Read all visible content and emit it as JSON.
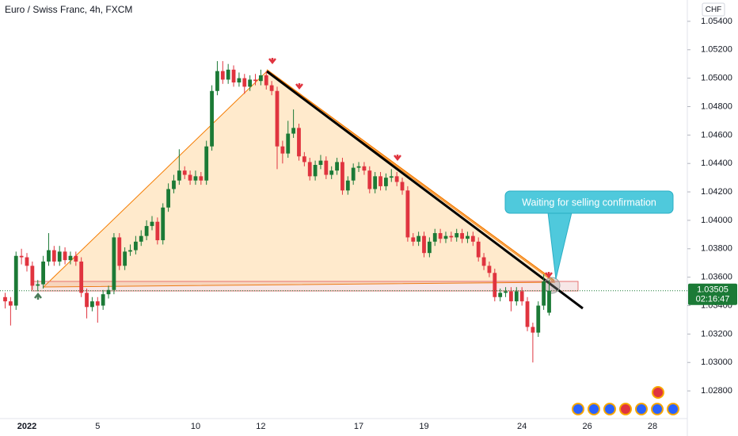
{
  "chart_data": {
    "type": "candlestick",
    "title": "Euro / Swiss Franc, 4h, FXCM",
    "currency": "CHF",
    "annotation": "Waiting for selling confirmation",
    "current_price": 1.03505,
    "countdown": "02:16:47",
    "up_color": "#1b7a36",
    "down_color": "#e0343f",
    "ylim": [
      1.0265,
      1.0555
    ],
    "yticks": [
      {
        "value": 1.028,
        "label": "1.02800"
      },
      {
        "value": 1.03,
        "label": "1.03000"
      },
      {
        "value": 1.032,
        "label": "1.03200"
      },
      {
        "value": 1.034,
        "label": "1.03400"
      },
      {
        "value": 1.036,
        "label": "1.03600"
      },
      {
        "value": 1.038,
        "label": "1.03800"
      },
      {
        "value": 1.04,
        "label": "1.04000"
      },
      {
        "value": 1.042,
        "label": "1.04200"
      },
      {
        "value": 1.044,
        "label": "1.04400"
      },
      {
        "value": 1.046,
        "label": "1.04600"
      },
      {
        "value": 1.048,
        "label": "1.04800"
      },
      {
        "value": 1.05,
        "label": "1.05000"
      },
      {
        "value": 1.052,
        "label": "1.05200"
      },
      {
        "value": 1.054,
        "label": "1.05400"
      }
    ],
    "categories": [
      null,
      null,
      null,
      null,
      "2022",
      null,
      null,
      null,
      null,
      null,
      null,
      null,
      null,
      null,
      null,
      null,
      null,
      "5",
      null,
      null,
      null,
      null,
      null,
      null,
      null,
      null,
      null,
      null,
      null,
      null,
      null,
      null,
      null,
      null,
      null,
      "10",
      null,
      null,
      null,
      null,
      null,
      null,
      null,
      null,
      null,
      null,
      null,
      "12",
      null,
      null,
      null,
      null,
      null,
      null,
      null,
      null,
      null,
      null,
      null,
      null,
      null,
      null,
      null,
      null,
      null,
      "17",
      null,
      null,
      null,
      null,
      null,
      null,
      null,
      null,
      null,
      null,
      null,
      "19",
      null,
      null,
      null,
      null,
      null,
      null,
      null,
      null,
      null,
      null,
      null,
      null,
      null,
      null,
      null,
      null,
      null,
      "24",
      null,
      null,
      null,
      null,
      null,
      null,
      null,
      null,
      null,
      null,
      null,
      "26",
      null,
      null,
      null,
      null,
      null,
      null,
      null,
      null,
      null,
      null,
      null,
      "28",
      null
    ],
    "open": [
      1.0346,
      1.0343,
      1.034,
      1.0375,
      1.0374,
      1.0368,
      1.0354,
      1.0355,
      1.0371,
      1.0379,
      1.0371,
      1.0378,
      1.0372,
      1.0375,
      1.0371,
      1.0349,
      1.0339,
      1.0343,
      1.034,
      1.0348,
      1.0351,
      1.0388,
      1.0368,
      1.0378,
      1.0379,
      1.0385,
      1.0389,
      1.0396,
      1.0399,
      1.0386,
      1.0409,
      1.0422,
      1.0428,
      1.0435,
      1.0432,
      1.0428,
      1.0431,
      1.0428,
      1.0452,
      1.0491,
      1.0505,
      1.0499,
      1.0506,
      1.0497,
      1.05,
      1.0494,
      1.0499,
      1.0498,
      1.0502,
      1.0495,
      1.0491,
      1.0452,
      1.0447,
      1.0461,
      1.0465,
      1.0445,
      1.0441,
      1.0431,
      1.0439,
      1.0442,
      1.0432,
      1.0435,
      1.0441,
      1.0421,
      1.0428,
      1.0437,
      1.0438,
      1.0435,
      1.0422,
      1.0431,
      1.0424,
      1.043,
      1.0431,
      1.0427,
      1.0421,
      1.0388,
      1.0385,
      1.0389,
      1.0377,
      1.0385,
      1.0391,
      1.0387,
      1.0389,
      1.0388,
      1.0391,
      1.0387,
      1.0389,
      1.0385,
      1.0374,
      1.0368,
      1.0363,
      1.0346,
      1.0349,
      1.035,
      1.0343,
      1.035,
      1.0343,
      1.0325,
      1.0321,
      1.034,
      1.0335,
      null,
      null,
      null,
      null,
      null,
      null,
      null,
      null,
      null,
      null,
      null,
      null,
      null,
      null,
      null,
      null,
      null,
      null,
      null,
      null
    ],
    "high": [
      1.0349,
      1.0346,
      1.0378,
      1.038,
      1.0377,
      1.0371,
      1.0358,
      1.0375,
      1.0391,
      1.0382,
      1.0382,
      1.0381,
      1.0378,
      1.0378,
      1.0374,
      1.0352,
      1.0346,
      1.0346,
      1.0351,
      1.0354,
      1.0391,
      1.0391,
      1.0381,
      1.0383,
      1.0389,
      1.0393,
      1.04,
      1.0403,
      1.0402,
      1.0412,
      1.0426,
      1.0432,
      1.045,
      1.0438,
      1.0435,
      1.0435,
      1.0434,
      1.0456,
      1.0495,
      1.0512,
      1.0512,
      1.051,
      1.0509,
      1.0504,
      1.0503,
      1.0502,
      1.0503,
      1.0506,
      1.0505,
      1.0498,
      1.0494,
      1.0456,
      1.047,
      1.0478,
      1.0468,
      1.0448,
      1.0444,
      1.0442,
      1.0446,
      1.0445,
      1.0438,
      1.0444,
      1.0444,
      1.0431,
      1.044,
      1.0441,
      1.0441,
      1.0438,
      1.0434,
      1.0434,
      1.0433,
      1.0436,
      1.0434,
      1.043,
      1.0424,
      1.0391,
      1.0392,
      1.0392,
      1.0388,
      1.0394,
      1.0394,
      1.0392,
      1.0392,
      1.0394,
      1.0394,
      1.0392,
      1.0392,
      1.0388,
      1.0377,
      1.0371,
      1.0366,
      1.0352,
      1.0353,
      1.0353,
      1.0353,
      1.0353,
      1.0346,
      1.0328,
      1.0343,
      1.0362,
      1.0358,
      null,
      null,
      null,
      null,
      null,
      null,
      null,
      null,
      null,
      null,
      null,
      null,
      null,
      null,
      null,
      null,
      null,
      null,
      null,
      null
    ],
    "low": [
      1.0338,
      1.0326,
      1.0337,
      1.0369,
      1.0364,
      1.0351,
      1.035,
      1.0352,
      1.0368,
      1.0368,
      1.0368,
      1.0369,
      1.0369,
      1.0368,
      1.0346,
      1.0331,
      1.0336,
      1.0328,
      1.0337,
      1.0345,
      1.0348,
      1.0365,
      1.0365,
      1.0375,
      1.0376,
      1.0382,
      1.0386,
      1.0393,
      1.0383,
      1.0383,
      1.0406,
      1.0419,
      1.0425,
      1.0429,
      1.0425,
      1.0425,
      1.0425,
      1.0425,
      1.0449,
      1.0488,
      1.0496,
      1.0496,
      1.0494,
      1.0494,
      1.0489,
      1.0491,
      1.0495,
      1.0495,
      1.0492,
      1.0488,
      1.0436,
      1.044,
      1.0444,
      1.0458,
      1.0442,
      1.0438,
      1.0428,
      1.0428,
      1.0436,
      1.0429,
      1.0429,
      1.0432,
      1.0418,
      1.0418,
      1.0425,
      1.0434,
      1.0432,
      1.0419,
      1.0419,
      1.0421,
      1.0421,
      1.0427,
      1.0424,
      1.0418,
      1.0385,
      1.0382,
      1.0382,
      1.0374,
      1.0374,
      1.0382,
      1.0384,
      1.0384,
      1.0385,
      1.0385,
      1.0384,
      1.0384,
      1.0382,
      1.0371,
      1.0365,
      1.036,
      1.0343,
      1.0343,
      1.0346,
      1.0336,
      1.034,
      1.034,
      1.0322,
      1.03,
      1.0318,
      1.0337,
      1.0333,
      null,
      null,
      null,
      null,
      null,
      null,
      null,
      null,
      null,
      null,
      null,
      null,
      null,
      null,
      null,
      null,
      null,
      null,
      null,
      null
    ],
    "close": [
      1.0343,
      1.034,
      1.0375,
      1.0374,
      1.0368,
      1.0354,
      1.0355,
      1.0371,
      1.0379,
      1.0371,
      1.0378,
      1.0372,
      1.0375,
      1.0371,
      1.0349,
      1.0339,
      1.0343,
      1.034,
      1.0348,
      1.0351,
      1.0388,
      1.0368,
      1.0378,
      1.0379,
      1.0385,
      1.0389,
      1.0396,
      1.0399,
      1.0386,
      1.0409,
      1.0422,
      1.0428,
      1.0435,
      1.0432,
      1.0428,
      1.0431,
      1.0428,
      1.0452,
      1.0491,
      1.0505,
      1.0499,
      1.0506,
      1.0497,
      1.05,
      1.0494,
      1.0499,
      1.0498,
      1.0502,
      1.0495,
      1.0491,
      1.0452,
      1.0447,
      1.0461,
      1.0465,
      1.0445,
      1.0441,
      1.0431,
      1.0439,
      1.0442,
      1.0432,
      1.0435,
      1.0441,
      1.0421,
      1.0428,
      1.0437,
      1.0438,
      1.0435,
      1.0422,
      1.0431,
      1.0424,
      1.043,
      1.0431,
      1.0427,
      1.0421,
      1.0388,
      1.0385,
      1.0389,
      1.0377,
      1.0385,
      1.0391,
      1.0387,
      1.0389,
      1.0388,
      1.0391,
      1.0387,
      1.0389,
      1.0385,
      1.0374,
      1.0368,
      1.0363,
      1.0346,
      1.0349,
      1.035,
      1.0343,
      1.035,
      1.0343,
      1.0325,
      1.0321,
      1.034,
      1.0357,
      1.03505,
      null,
      null,
      null,
      null,
      null,
      null,
      null,
      null,
      null,
      null,
      null,
      null,
      null,
      null,
      null,
      null,
      null,
      null,
      null,
      null
    ]
  }
}
